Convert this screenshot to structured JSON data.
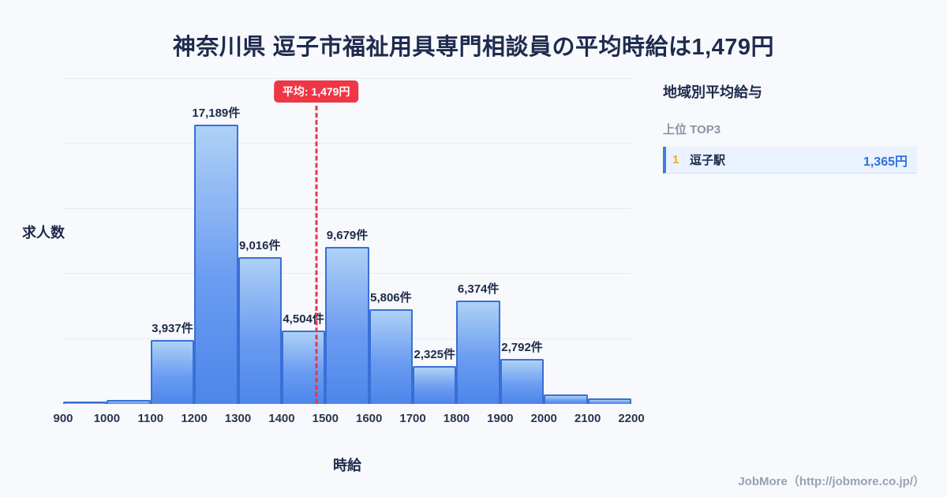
{
  "chart_data": {
    "type": "bar",
    "title": "神奈川県 逗子市福祉用具専門相談員の平均時給は1,479円",
    "xlabel": "時給",
    "ylabel": "求人数",
    "x_ticks": [
      900,
      1000,
      1100,
      1200,
      1300,
      1400,
      1500,
      1600,
      1700,
      1800,
      1900,
      2000,
      2100,
      2200
    ],
    "ylim": [
      0,
      20000
    ],
    "gridline_step": 4000,
    "grid": "horizontal",
    "average": {
      "value": 1479,
      "label": "平均: 1,479円"
    },
    "bins": [
      {
        "range": [
          900,
          1000
        ],
        "value": 150,
        "label": ""
      },
      {
        "range": [
          1000,
          1100
        ],
        "value": 250,
        "label": ""
      },
      {
        "range": [
          1100,
          1200
        ],
        "value": 3937,
        "label": "3,937件"
      },
      {
        "range": [
          1200,
          1300
        ],
        "value": 17189,
        "label": "17,189件"
      },
      {
        "range": [
          1300,
          1400
        ],
        "value": 9016,
        "label": "9,016件"
      },
      {
        "range": [
          1400,
          1500
        ],
        "value": 4504,
        "label": "4,504件"
      },
      {
        "range": [
          1500,
          1600
        ],
        "value": 9679,
        "label": "9,679件"
      },
      {
        "range": [
          1600,
          1700
        ],
        "value": 5806,
        "label": "5,806件"
      },
      {
        "range": [
          1700,
          1800
        ],
        "value": 2325,
        "label": "2,325件"
      },
      {
        "range": [
          1800,
          1900
        ],
        "value": 6374,
        "label": "6,374件"
      },
      {
        "range": [
          1900,
          2000
        ],
        "value": 2792,
        "label": "2,792件"
      },
      {
        "range": [
          2000,
          2100
        ],
        "value": 600,
        "label": ""
      },
      {
        "range": [
          2100,
          2200
        ],
        "value": 350,
        "label": ""
      }
    ],
    "colors": {
      "bar_top": "#aed1f6",
      "bar_bottom": "#4c86ea",
      "bar_border": "#3a6fd6",
      "average_line": "#e8364e",
      "badge_background": "#ee3645"
    }
  },
  "sidebar": {
    "heading": "地域別平均給与",
    "subheading": "上位 TOP3",
    "rankings": [
      {
        "rank": "1",
        "name": "逗子駅",
        "value": "1,365円"
      }
    ],
    "colors": {
      "rank_number": "#f5a623",
      "value_text": "#2f6fe0",
      "row_background": "#e9f2fe"
    }
  },
  "footer": {
    "credit": "JobMore（http://jobmore.co.jp/）"
  }
}
